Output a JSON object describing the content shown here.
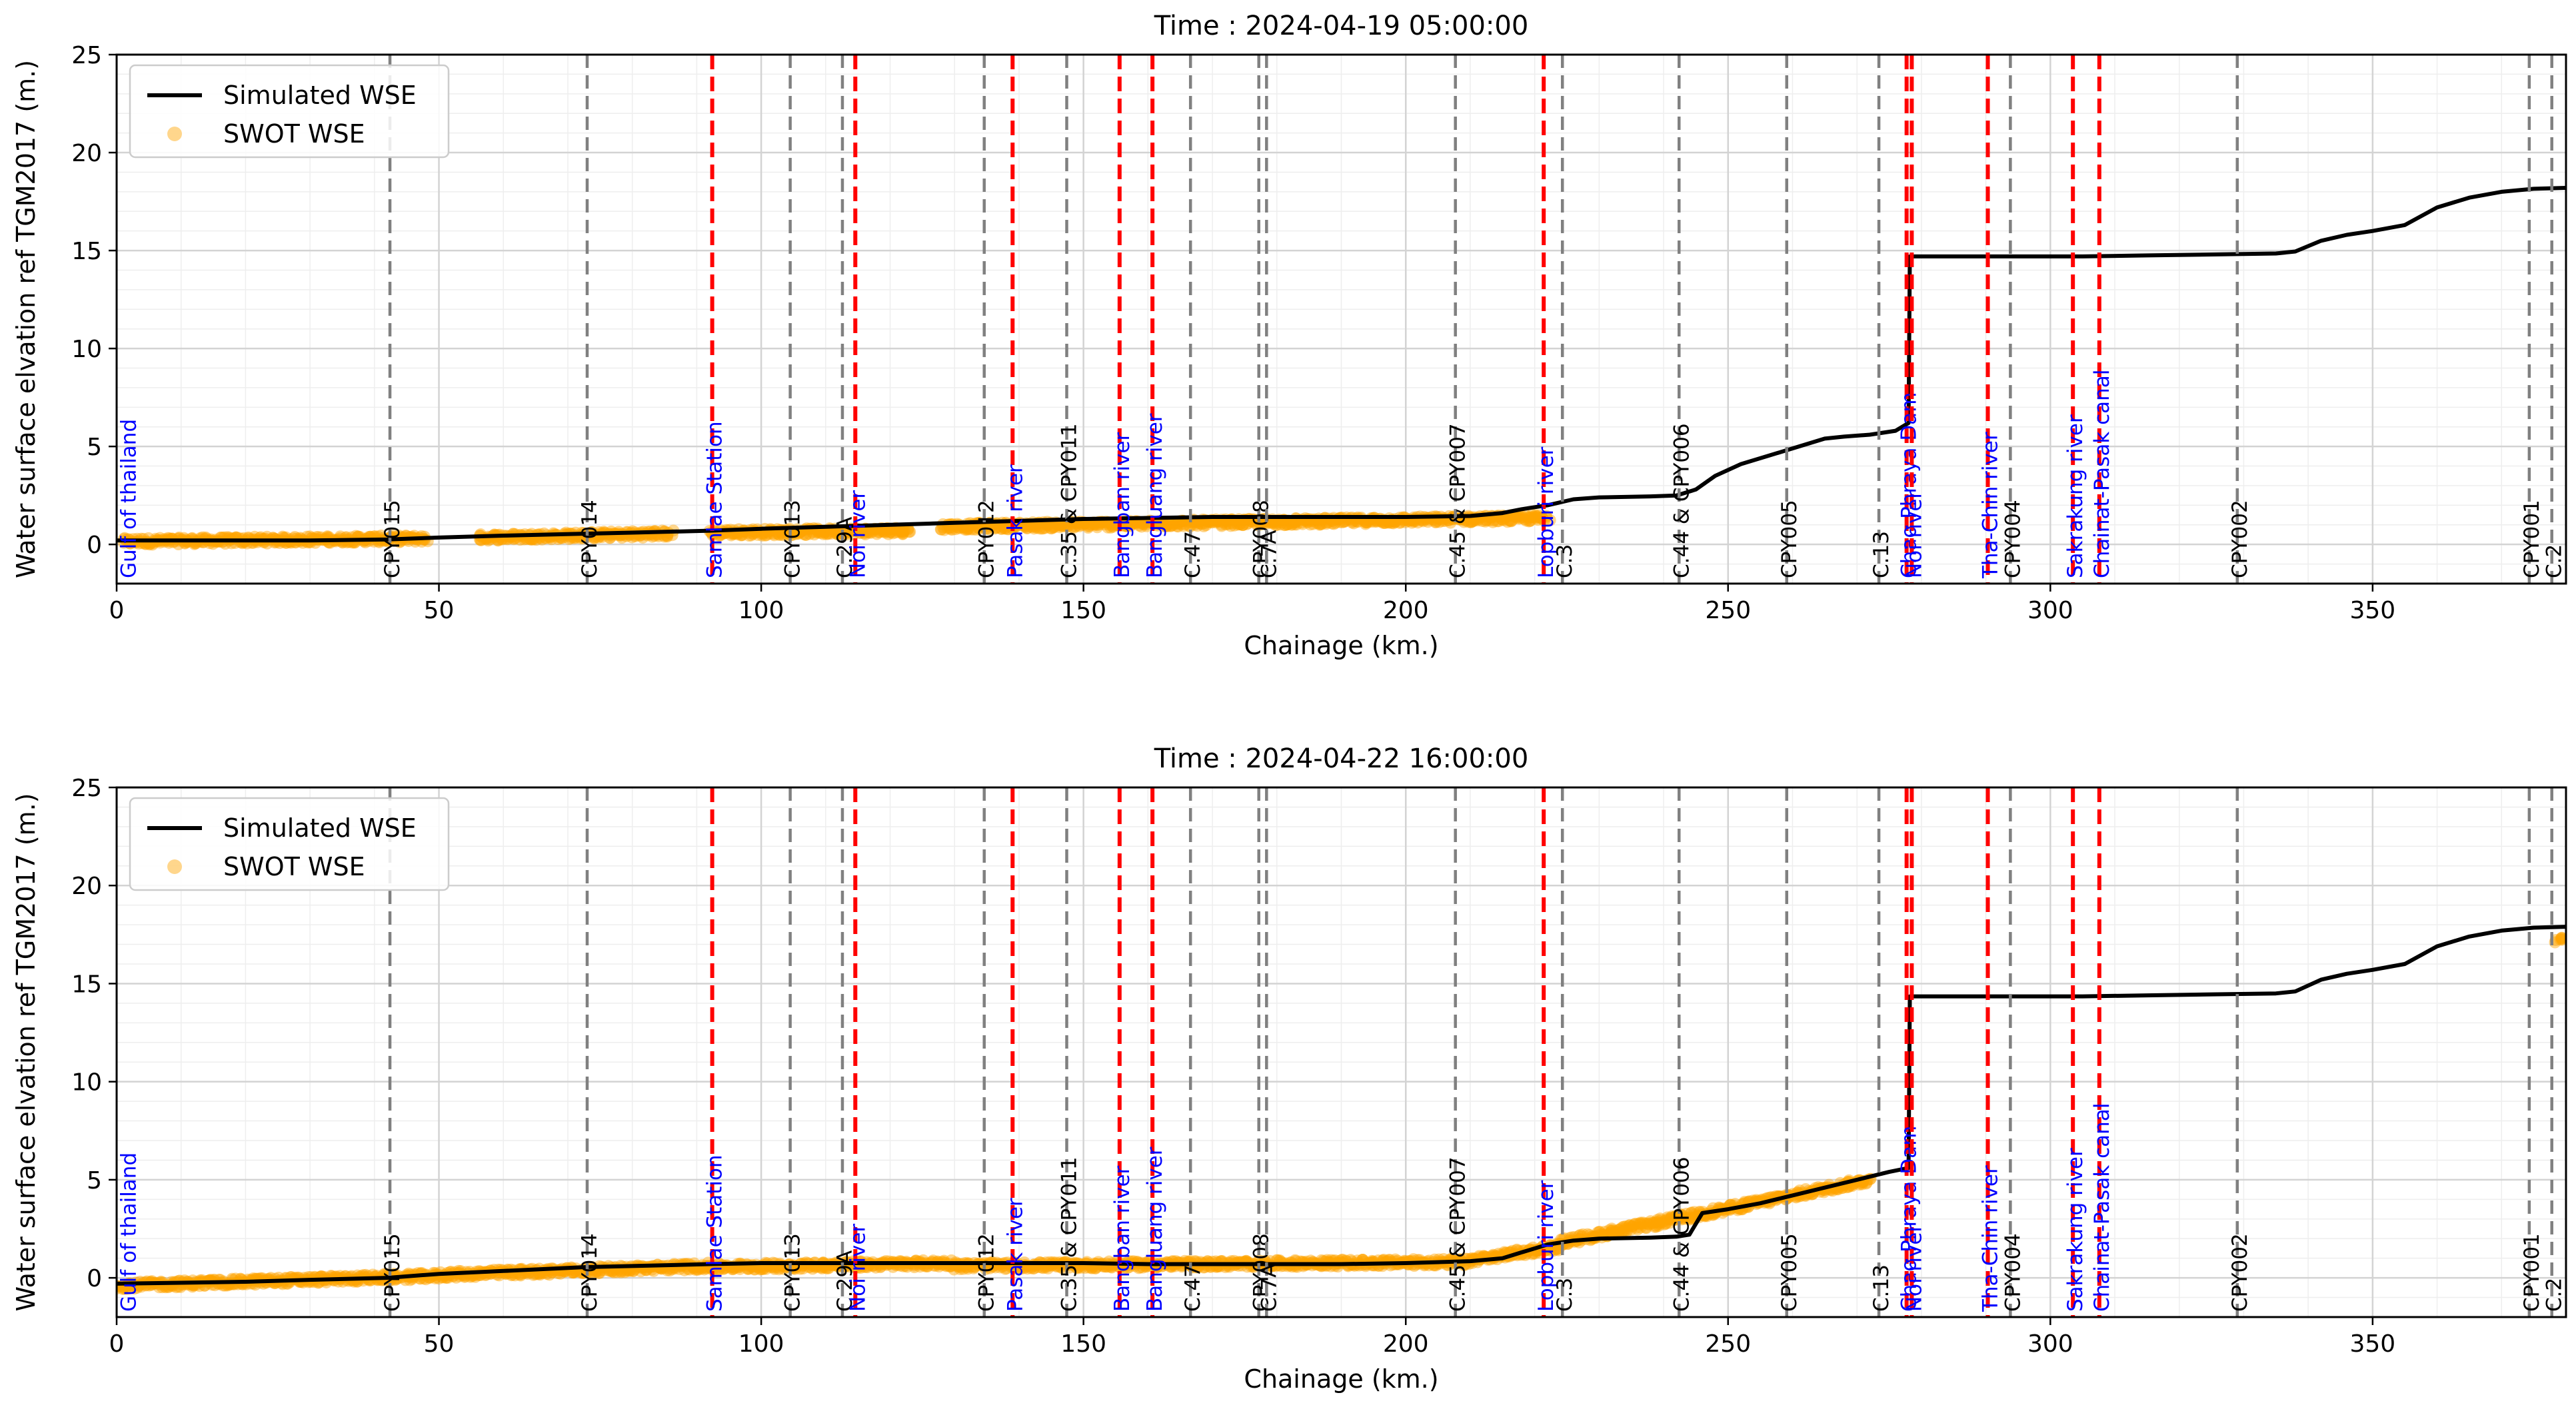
{
  "figure": {
    "background": "#ffffff"
  },
  "colors": {
    "wse_line": "#000000",
    "swot_point": "#ffa500",
    "station_line": "#808080",
    "junction_line": "#ff0000",
    "station_text": "#000000",
    "junction_text": "#0000ff",
    "grid_major": "#d3d3d3",
    "grid_minor": "#eeeeee"
  },
  "chart_data": [
    {
      "type": "line",
      "title": "Time : 2024-04-19 05:00:00",
      "xlabel": "Chainage (km.)",
      "ylabel": "Water surface elvation ref TGM2017 (m.)",
      "xlim": [
        0,
        380
      ],
      "ylim": [
        -2,
        25
      ],
      "xticks": [
        "0",
        "50",
        "100",
        "150",
        "200",
        "250",
        "300",
        "350"
      ],
      "yticks": [
        "25",
        "20",
        "15",
        "10",
        "5",
        "0"
      ],
      "grid": true,
      "legend": {
        "position": "top-left",
        "entries": [
          "Simulated WSE",
          "SWOT WSE"
        ]
      },
      "series": [
        {
          "name": "Simulated WSE",
          "kind": "line",
          "x": [
            0,
            10,
            20,
            30,
            42,
            50,
            60,
            73,
            80,
            92,
            100,
            110,
            120,
            130,
            140,
            150,
            160,
            170,
            180,
            190,
            200,
            210,
            215,
            218,
            222,
            226,
            230,
            238,
            242,
            245,
            248,
            252,
            256,
            260,
            265,
            268,
            272,
            276,
            278,
            278.2,
            285,
            295,
            305,
            315,
            325,
            335,
            338,
            342,
            346,
            350,
            355,
            360,
            365,
            370,
            375,
            380
          ],
          "y": [
            0.2,
            0.2,
            0.2,
            0.2,
            0.25,
            0.35,
            0.45,
            0.55,
            0.6,
            0.7,
            0.8,
            0.9,
            1.0,
            1.1,
            1.2,
            1.3,
            1.35,
            1.4,
            1.4,
            1.4,
            1.4,
            1.45,
            1.6,
            1.8,
            2.0,
            2.3,
            2.4,
            2.45,
            2.5,
            2.8,
            3.5,
            4.1,
            4.5,
            4.9,
            5.4,
            5.5,
            5.6,
            5.8,
            6.2,
            14.7,
            14.7,
            14.7,
            14.7,
            14.75,
            14.8,
            14.85,
            14.95,
            15.5,
            15.8,
            16.0,
            16.3,
            17.2,
            17.7,
            18.0,
            18.15,
            18.2
          ]
        },
        {
          "name": "SWOT WSE",
          "kind": "scatter",
          "segments": [
            {
              "start": 1,
              "end": 48,
              "y0": 0.15,
              "y1": 0.3
            },
            {
              "start": 56,
              "end": 86,
              "y0": 0.35,
              "y1": 0.55
            },
            {
              "start": 92,
              "end": 123,
              "y0": 0.6,
              "y1": 0.7
            },
            {
              "start": 128,
              "end": 222,
              "y0": 0.9,
              "y1": 1.35
            }
          ]
        }
      ],
      "stations": [
        {
          "x": 42.4,
          "label": "CPY015",
          "kind": "station"
        },
        {
          "x": 73,
          "label": "CPY014",
          "kind": "station"
        },
        {
          "x": 92.4,
          "label": "Samlae Station",
          "kind": "junction"
        },
        {
          "x": 104.5,
          "label": "CPY013",
          "kind": "station"
        },
        {
          "x": 112.6,
          "label": "C.29A",
          "kind": "station"
        },
        {
          "x": 114.6,
          "label": "Noi river",
          "kind": "junction"
        },
        {
          "x": 134.6,
          "label": "CPY012",
          "kind": "station"
        },
        {
          "x": 139,
          "label": "Pasak river",
          "kind": "junction"
        },
        {
          "x": 147.4,
          "label": "C.35 & CPY011",
          "kind": "station"
        },
        {
          "x": 155.6,
          "label": "Bangban river",
          "kind": "junction"
        },
        {
          "x": 160.7,
          "label": "Bangluang river",
          "kind": "junction"
        },
        {
          "x": 166.6,
          "label": "C.47",
          "kind": "station"
        },
        {
          "x": 177.2,
          "label": "CPY008",
          "kind": "station"
        },
        {
          "x": 178.4,
          "label": "C.7A",
          "kind": "station"
        },
        {
          "x": 207.7,
          "label": "C.45 & CPY007",
          "kind": "station"
        },
        {
          "x": 221.4,
          "label": "Lopburi river",
          "kind": "junction"
        },
        {
          "x": 224.3,
          "label": "C.3",
          "kind": "station"
        },
        {
          "x": 242.4,
          "label": "C.44 & CPY006",
          "kind": "station"
        },
        {
          "x": 259.1,
          "label": "CPY005",
          "kind": "station"
        },
        {
          "x": 273.4,
          "label": "C.13",
          "kind": "station"
        },
        {
          "x": 277.7,
          "label": "Chao Phraya Dam",
          "kind": "junction"
        },
        {
          "x": 278.5,
          "label": "Noi river",
          "kind": "junction"
        },
        {
          "x": 290.3,
          "label": "Tha-Chin river",
          "kind": "junction"
        },
        {
          "x": 293.8,
          "label": "CPY004",
          "kind": "station"
        },
        {
          "x": 303.5,
          "label": "Sakrakung river",
          "kind": "junction"
        },
        {
          "x": 307.6,
          "label": "Chainat-Pasak canal",
          "kind": "junction"
        },
        {
          "x": 329,
          "label": "CPY002",
          "kind": "station"
        },
        {
          "x": 374.3,
          "label": "CPY001",
          "kind": "station"
        },
        {
          "x": 377.8,
          "label": "C.2",
          "kind": "station"
        }
      ]
    },
    {
      "type": "line",
      "title": "Time : 2024-04-22 16:00:00",
      "xlabel": "Chainage (km.)",
      "ylabel": "Water surface elvation ref TGM2017 (m.)",
      "xlim": [
        0,
        380
      ],
      "ylim": [
        -2,
        25
      ],
      "xticks": [
        "0",
        "50",
        "100",
        "150",
        "200",
        "250",
        "300",
        "350"
      ],
      "yticks": [
        "25",
        "20",
        "15",
        "10",
        "5",
        "0"
      ],
      "grid": true,
      "legend": {
        "position": "top-left",
        "entries": [
          "Simulated WSE",
          "SWOT WSE"
        ]
      },
      "series": [
        {
          "name": "Simulated WSE",
          "kind": "line",
          "x": [
            0,
            10,
            20,
            30,
            42,
            50,
            60,
            73,
            80,
            92,
            100,
            110,
            120,
            130,
            140,
            150,
            160,
            170,
            180,
            190,
            200,
            210,
            215,
            218,
            222,
            226,
            230,
            238,
            242,
            244,
            246,
            250,
            255,
            260,
            265,
            270,
            275,
            278,
            278.2,
            285,
            295,
            305,
            315,
            325,
            335,
            338,
            342,
            346,
            350,
            355,
            360,
            365,
            370,
            375,
            380
          ],
          "y": [
            -0.3,
            -0.25,
            -0.2,
            -0.1,
            0.0,
            0.2,
            0.35,
            0.55,
            0.6,
            0.7,
            0.75,
            0.75,
            0.75,
            0.75,
            0.75,
            0.75,
            0.7,
            0.7,
            0.7,
            0.7,
            0.75,
            0.85,
            1.0,
            1.3,
            1.7,
            1.9,
            2.0,
            2.05,
            2.1,
            2.2,
            3.3,
            3.5,
            3.8,
            4.2,
            4.6,
            5.0,
            5.4,
            5.6,
            14.35,
            14.35,
            14.35,
            14.35,
            14.4,
            14.45,
            14.5,
            14.6,
            15.2,
            15.5,
            15.7,
            16.0,
            16.9,
            17.4,
            17.7,
            17.85,
            17.9
          ]
        },
        {
          "name": "SWOT WSE",
          "kind": "scatter",
          "segments": [
            {
              "start": 0,
              "end": 50,
              "y0": -0.4,
              "y1": 0.1
            },
            {
              "start": 50,
              "end": 92,
              "y0": 0.15,
              "y1": 0.6
            },
            {
              "start": 92,
              "end": 130,
              "y0": 0.55,
              "y1": 0.75
            },
            {
              "start": 130,
              "end": 210,
              "y0": 0.6,
              "y1": 0.8
            },
            {
              "start": 210,
              "end": 224,
              "y0": 0.9,
              "y1": 1.6
            },
            {
              "start": 224,
              "end": 242,
              "y0": 1.8,
              "y1": 3.0
            },
            {
              "start": 242,
              "end": 272,
              "y0": 3.0,
              "y1": 5.0
            },
            {
              "start": 378.5,
              "end": 379.5,
              "y0": 17.1,
              "y1": 17.4
            }
          ]
        }
      ],
      "stations": [
        {
          "x": 42.4,
          "label": "CPY015",
          "kind": "station"
        },
        {
          "x": 73,
          "label": "CPY014",
          "kind": "station"
        },
        {
          "x": 92.4,
          "label": "Samlae Station",
          "kind": "junction"
        },
        {
          "x": 104.5,
          "label": "CPY013",
          "kind": "station"
        },
        {
          "x": 112.6,
          "label": "C.29A",
          "kind": "station"
        },
        {
          "x": 114.6,
          "label": "Noi river",
          "kind": "junction"
        },
        {
          "x": 134.6,
          "label": "CPY012",
          "kind": "station"
        },
        {
          "x": 139,
          "label": "Pasak river",
          "kind": "junction"
        },
        {
          "x": 147.4,
          "label": "C.35 & CPY011",
          "kind": "station"
        },
        {
          "x": 155.6,
          "label": "Bangban river",
          "kind": "junction"
        },
        {
          "x": 160.7,
          "label": "Bangluang river",
          "kind": "junction"
        },
        {
          "x": 166.6,
          "label": "C.47",
          "kind": "station"
        },
        {
          "x": 177.2,
          "label": "CPY008",
          "kind": "station"
        },
        {
          "x": 178.4,
          "label": "C.7A",
          "kind": "station"
        },
        {
          "x": 207.7,
          "label": "C.45 & CPY007",
          "kind": "station"
        },
        {
          "x": 221.4,
          "label": "Lopburi river",
          "kind": "junction"
        },
        {
          "x": 224.3,
          "label": "C.3",
          "kind": "station"
        },
        {
          "x": 242.4,
          "label": "C.44 & CPY006",
          "kind": "station"
        },
        {
          "x": 259.1,
          "label": "CPY005",
          "kind": "station"
        },
        {
          "x": 273.4,
          "label": "C.13",
          "kind": "station"
        },
        {
          "x": 277.7,
          "label": "Chao Phraya Dam",
          "kind": "junction"
        },
        {
          "x": 278.5,
          "label": "Noi river",
          "kind": "junction"
        },
        {
          "x": 290.3,
          "label": "Tha-Chin river",
          "kind": "junction"
        },
        {
          "x": 293.8,
          "label": "CPY004",
          "kind": "station"
        },
        {
          "x": 303.5,
          "label": "Sakrakung river",
          "kind": "junction"
        },
        {
          "x": 307.6,
          "label": "Chainat-Pasak canal",
          "kind": "junction"
        },
        {
          "x": 329,
          "label": "CPY002",
          "kind": "station"
        },
        {
          "x": 374.3,
          "label": "CPY001",
          "kind": "station"
        },
        {
          "x": 377.8,
          "label": "C.2",
          "kind": "station"
        }
      ],
      "extra_labels": [
        {
          "x": 1.5,
          "label": "Gulf of thailand",
          "kind": "junction"
        }
      ]
    }
  ],
  "first_chart_extra_labels": [
    {
      "x": 1.5,
      "label": "Gulf of thailand",
      "kind": "junction"
    }
  ]
}
